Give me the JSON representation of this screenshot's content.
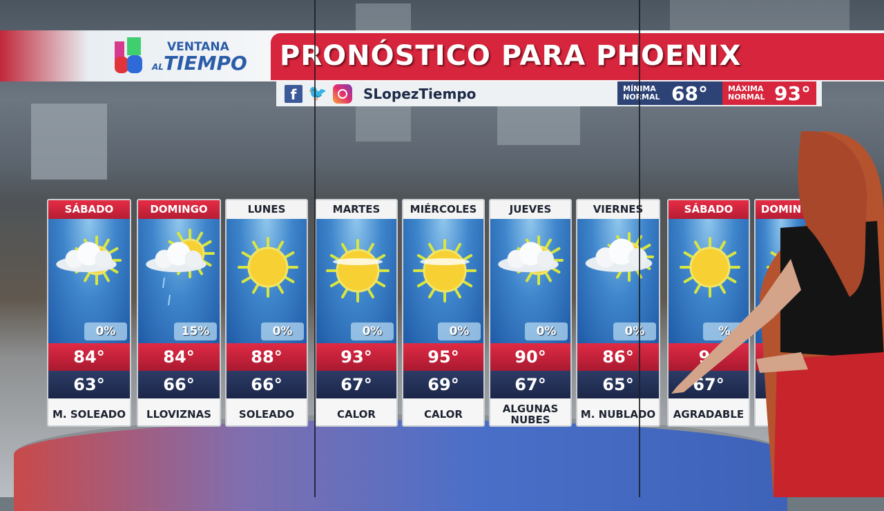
{
  "header": {
    "logo": {
      "line1": "VENTANA",
      "line2_small": "AL",
      "line2": "TIEMPO"
    },
    "title": "PRONÓSTICO PARA PHOENIX",
    "social_handle": "SLopezTiempo",
    "social_icons": [
      "facebook-icon",
      "twitter-icon",
      "instagram-icon"
    ],
    "normals": {
      "min_label": "MÍNIMA NORMAL",
      "min_value": "68°",
      "max_label": "MÁXIMA NORMAL",
      "max_value": "93°"
    }
  },
  "colors": {
    "brand_red": "#d6253c",
    "navy": "#1b2648",
    "sky": "#3f86cc"
  },
  "forecast": [
    {
      "day": "SÁBADO",
      "weekend": true,
      "icon": "partly-cloudy",
      "precip": "0%",
      "high": "84°",
      "low": "63°",
      "condition": "M. SOLEADO"
    },
    {
      "day": "DOMINGO",
      "weekend": true,
      "icon": "drizzle",
      "precip": "15%",
      "high": "84°",
      "low": "66°",
      "condition": "LLOVIZNAS"
    },
    {
      "day": "LUNES",
      "weekend": false,
      "icon": "sunny",
      "precip": "0%",
      "high": "88°",
      "low": "66°",
      "condition": "SOLEADO"
    },
    {
      "day": "MARTES",
      "weekend": false,
      "icon": "hot-sun",
      "precip": "0%",
      "high": "93°",
      "low": "67°",
      "condition": "CALOR"
    },
    {
      "day": "MIÉRCOLES",
      "weekend": false,
      "icon": "hot-sun",
      "precip": "0%",
      "high": "95°",
      "low": "69°",
      "condition": "CALOR"
    },
    {
      "day": "JUEVES",
      "weekend": false,
      "icon": "partly-cloudy",
      "precip": "0%",
      "high": "90°",
      "low": "67°",
      "condition": "ALGUNAS NUBES"
    },
    {
      "day": "VIERNES",
      "weekend": false,
      "icon": "mostly-cloudy",
      "precip": "0%",
      "high": "86°",
      "low": "65°",
      "condition": "M. NUBLADO"
    },
    {
      "day": "SÁBADO",
      "weekend": true,
      "icon": "sunny",
      "precip": "%",
      "high": "9°",
      "low": "67°",
      "condition": "AGRADABLE"
    },
    {
      "day": "DOMIN",
      "weekend": true,
      "icon": "sunny",
      "precip": "",
      "high": "",
      "low": "6",
      "condition": "M. S"
    }
  ]
}
